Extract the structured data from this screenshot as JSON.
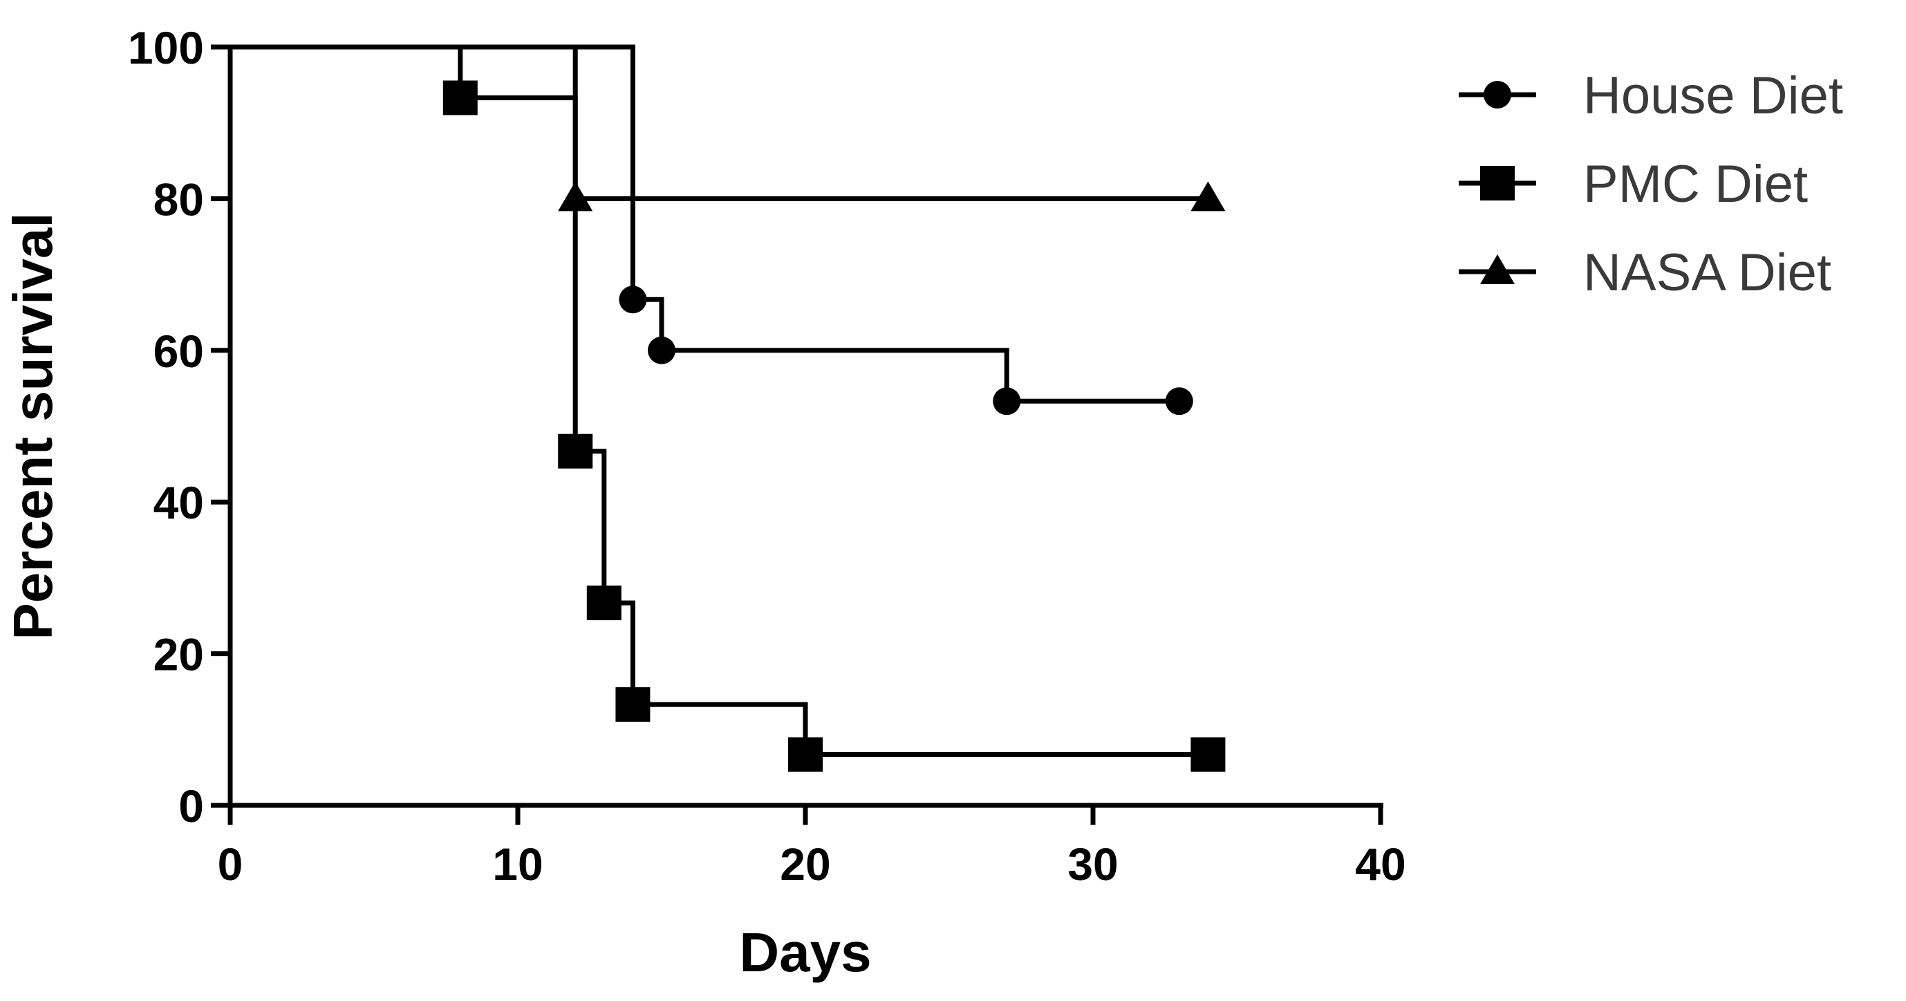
{
  "chart_data": {
    "type": "line",
    "subtype": "kaplan-meier-step",
    "title": "",
    "xlabel": "Days",
    "ylabel": "Percent survival",
    "xlim": [
      0,
      40
    ],
    "ylim": [
      0,
      100
    ],
    "xticks": [
      0,
      10,
      20,
      30,
      40
    ],
    "yticks": [
      0,
      20,
      40,
      60,
      80,
      100
    ],
    "grid": false,
    "legend_position": "top-right",
    "series": [
      {
        "name": "House Diet",
        "marker": "circle",
        "color": "#000000",
        "x": [
          0,
          14,
          15,
          27,
          33
        ],
        "y": [
          100,
          66.7,
          60,
          53.3,
          53.3
        ]
      },
      {
        "name": "PMC Diet",
        "marker": "square",
        "color": "#000000",
        "x": [
          0,
          8,
          12,
          13,
          14,
          20,
          34
        ],
        "y": [
          100,
          93.3,
          46.7,
          26.7,
          13.3,
          6.7,
          6.7
        ]
      },
      {
        "name": "NASA Diet",
        "marker": "triangle",
        "color": "#000000",
        "x": [
          0,
          12,
          34
        ],
        "y": [
          100,
          80,
          80
        ]
      }
    ]
  }
}
